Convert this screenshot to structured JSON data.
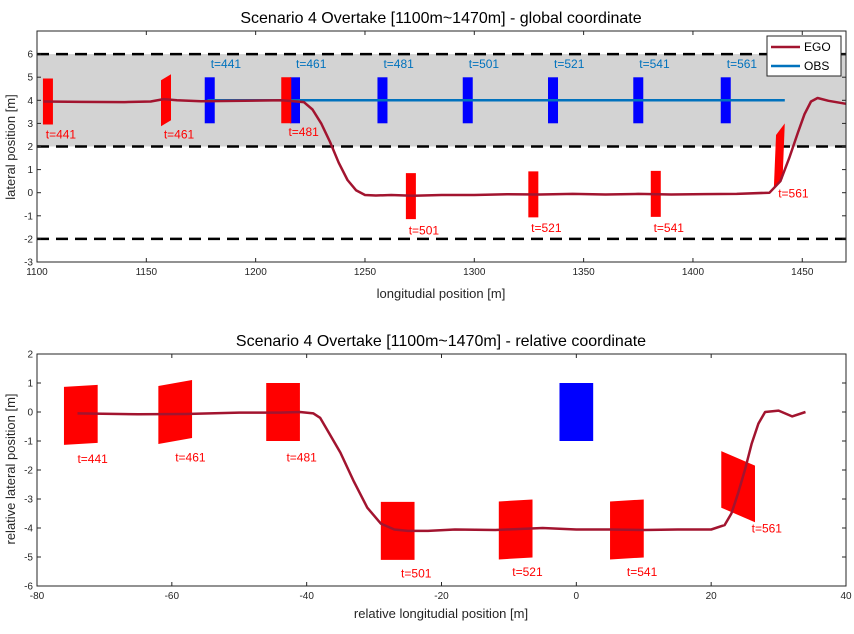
{
  "chart_data": [
    {
      "type": "line",
      "title": "Scenario 4 Overtake [1100m~1470m] - global coordinate",
      "xlabel": "longitudial position [m]",
      "ylabel": "lateral position [m]",
      "xlim": [
        1100,
        1470
      ],
      "ylim": [
        -3,
        7
      ],
      "xticks": [
        1100,
        1150,
        1200,
        1250,
        1300,
        1350,
        1400,
        1450
      ],
      "yticks": [
        -3,
        -2,
        -1,
        0,
        1,
        2,
        3,
        4,
        5,
        6
      ],
      "lane_band": [
        2,
        6
      ],
      "dashed_lines": [
        6,
        2,
        -2
      ],
      "legend": {
        "position": "top-right",
        "entries": [
          "EGO",
          "OBS"
        ]
      },
      "colors": {
        "ego": "#a2142f",
        "obs": "#0072bd",
        "ego_box": "#ff0000",
        "obs_box": "#0000ff",
        "band": "#d3d3d3"
      },
      "series": [
        {
          "name": "EGO",
          "x": [
            1103,
            1120,
            1140,
            1152,
            1158,
            1164,
            1175,
            1195,
            1212,
            1222,
            1226,
            1230,
            1234,
            1238,
            1242,
            1246,
            1250,
            1255,
            1262,
            1272,
            1285,
            1300,
            1315,
            1330,
            1345,
            1360,
            1375,
            1390,
            1405,
            1420,
            1435,
            1440,
            1444,
            1448,
            1451,
            1454,
            1457,
            1462,
            1470
          ],
          "y": [
            3.95,
            3.93,
            3.92,
            3.95,
            4.05,
            4.0,
            3.96,
            3.98,
            4.0,
            3.92,
            3.6,
            3.0,
            2.2,
            1.3,
            0.55,
            0.1,
            -0.1,
            -0.12,
            -0.1,
            -0.13,
            -0.1,
            -0.1,
            -0.07,
            -0.08,
            -0.05,
            -0.08,
            -0.05,
            -0.08,
            -0.06,
            -0.05,
            0.0,
            0.5,
            1.5,
            2.6,
            3.4,
            3.95,
            4.1,
            3.98,
            3.85
          ]
        },
        {
          "name": "OBS",
          "x": [
            1178,
            1442
          ],
          "y": [
            4.0,
            4.0
          ]
        }
      ],
      "ego_boxes": [
        {
          "label": "t=441",
          "x": 1105,
          "y": 3.95,
          "label_x": 1104,
          "label_y": 2.35
        },
        {
          "label": "t=461",
          "x": 1159,
          "y": 4.0,
          "label_x": 1158,
          "label_y": 2.35
        },
        {
          "label": "t=481",
          "x": 1214,
          "y": 4.0,
          "label_x": 1215,
          "label_y": 2.45
        },
        {
          "label": "t=501",
          "x": 1271,
          "y": -0.15,
          "label_x": 1270,
          "label_y": -1.8
        },
        {
          "label": "t=521",
          "x": 1327,
          "y": -0.07,
          "label_x": 1326,
          "label_y": -1.7
        },
        {
          "label": "t=541",
          "x": 1383,
          "y": -0.05,
          "label_x": 1382,
          "label_y": -1.7
        },
        {
          "label": "t=561",
          "x": 1440,
          "y": 1.55,
          "label_x": 1439,
          "label_y": -0.2
        }
      ],
      "obs_boxes": [
        {
          "label": "t=441",
          "x": 1179,
          "y": 4.0
        },
        {
          "label": "t=461",
          "x": 1218,
          "y": 4.0
        },
        {
          "label": "t=481",
          "x": 1258,
          "y": 4.0
        },
        {
          "label": "t=501",
          "x": 1297,
          "y": 4.0
        },
        {
          "label": "t=521",
          "x": 1336,
          "y": 4.0
        },
        {
          "label": "t=541",
          "x": 1375,
          "y": 4.0
        },
        {
          "label": "t=561",
          "x": 1415,
          "y": 4.0
        }
      ]
    },
    {
      "type": "line",
      "title": "Scenario 4 Overtake [1100m~1470m] - relative coordinate",
      "xlabel": "relative longitudial position [m]",
      "ylabel": "relative lateral position [m]",
      "xlim": [
        -80,
        40
      ],
      "ylim": [
        -6,
        2
      ],
      "xticks": [
        -80,
        -60,
        -40,
        -20,
        0,
        20,
        40
      ],
      "yticks": [
        -6,
        -5,
        -4,
        -3,
        -2,
        -1,
        0,
        1,
        2
      ],
      "colors": {
        "ego": "#a2142f",
        "ego_box": "#ff0000",
        "obs_box": "#0000ff"
      },
      "series": [
        {
          "name": "EGO",
          "x": [
            -74,
            -65,
            -58,
            -50,
            -44,
            -41,
            -39,
            -38,
            -37,
            -35,
            -33,
            -31,
            -29,
            -27,
            -25,
            -22,
            -18,
            -12,
            -5,
            0,
            5,
            10,
            15,
            20,
            22,
            23,
            24,
            25,
            26,
            27,
            28,
            30,
            32,
            34
          ],
          "y": [
            -0.05,
            -0.08,
            -0.07,
            -0.02,
            -0.02,
            0.0,
            -0.05,
            -0.2,
            -0.6,
            -1.4,
            -2.4,
            -3.3,
            -3.85,
            -4.05,
            -4.1,
            -4.1,
            -4.05,
            -4.07,
            -4.0,
            -4.05,
            -4.05,
            -4.07,
            -4.05,
            -4.05,
            -3.9,
            -3.5,
            -2.8,
            -2.0,
            -1.1,
            -0.4,
            0.0,
            0.05,
            -0.15,
            0.0
          ]
        }
      ],
      "ego_boxes": [
        {
          "label": "t=441",
          "x": -73.5,
          "y": -0.1,
          "label_x": -74,
          "label_y": -1.75
        },
        {
          "label": "t=461",
          "x": -59.5,
          "y": 0.0,
          "label_x": -59.5,
          "label_y": -1.7
        },
        {
          "label": "t=481",
          "x": -43.5,
          "y": 0.0,
          "label_x": -43,
          "label_y": -1.7
        },
        {
          "label": "t=501",
          "x": -26.5,
          "y": -4.1,
          "label_x": -26,
          "label_y": -5.7
        },
        {
          "label": "t=521",
          "x": -9,
          "y": -4.05,
          "label_x": -9.5,
          "label_y": -5.65
        },
        {
          "label": "t=541",
          "x": 7.5,
          "y": -4.05,
          "label_x": 7.5,
          "label_y": -5.65
        },
        {
          "label": "t=561",
          "x": 24,
          "y": -2.55,
          "label_x": 26,
          "label_y": -4.15
        }
      ],
      "obs_box": {
        "x": 0,
        "y": 0.0
      }
    }
  ]
}
